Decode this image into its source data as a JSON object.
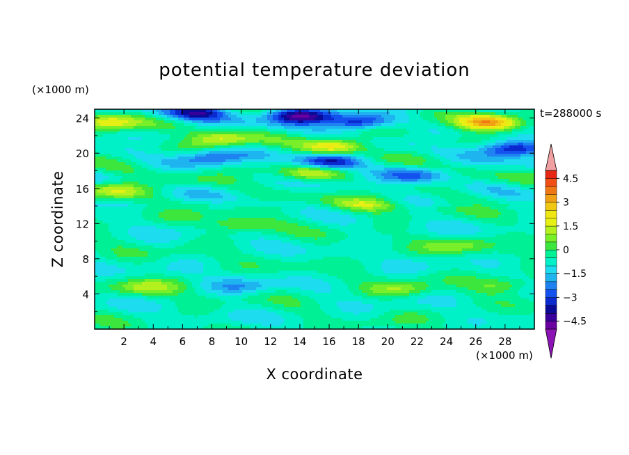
{
  "chart_data": {
    "type": "heatmap",
    "title": "potential temperature deviation",
    "xlabel": "X coordinate",
    "ylabel": "Z coordinate",
    "x_unit": "(×1000 m)",
    "y_unit": "(×1000 m)",
    "time_label": "t=288000 s",
    "xlim": [
      0,
      30
    ],
    "ylim": [
      0,
      25
    ],
    "x_ticks": [
      2,
      4,
      6,
      8,
      10,
      12,
      14,
      16,
      18,
      20,
      22,
      24,
      26,
      28
    ],
    "y_ticks": [
      4,
      8,
      12,
      16,
      20,
      24
    ],
    "colorbar": {
      "levels": [
        -5.0,
        -4.5,
        -4.0,
        -3.5,
        -3.0,
        -2.5,
        -2.0,
        -1.5,
        -1.0,
        -0.5,
        0.0,
        0.5,
        1.0,
        1.5,
        2.0,
        2.5,
        3.0,
        3.5,
        4.0,
        4.5,
        5.0
      ],
      "colors": [
        "#6a00a0",
        "#38009a",
        "#0a0a98",
        "#0a2ad0",
        "#1452f0",
        "#1e82f0",
        "#1eb4f0",
        "#1edcf0",
        "#00f0c8",
        "#00f096",
        "#3ce63c",
        "#78ef28",
        "#b4f01e",
        "#e6f014",
        "#f0e614",
        "#f0c814",
        "#f0a014",
        "#f07814",
        "#f05014",
        "#e62814"
      ],
      "under_color": "#8c14b4",
      "over_color": "#f0a0a0",
      "tick_labels": [
        {
          "value": 4.5,
          "label": "4.5"
        },
        {
          "value": 3.0,
          "label": "3"
        },
        {
          "value": 1.5,
          "label": "1.5"
        },
        {
          "value": 0.0,
          "label": "0"
        },
        {
          "value": -1.5,
          "label": "−1.5"
        },
        {
          "value": -3.0,
          "label": "−3"
        },
        {
          "value": -4.5,
          "label": "−4.5"
        }
      ]
    },
    "features": [
      {
        "x": 27.0,
        "z": 23.5,
        "value": 4.0
      },
      {
        "x": 16.5,
        "z": 20.8,
        "value": 3.0
      },
      {
        "x": 14.8,
        "z": 17.8,
        "value": 2.0
      },
      {
        "x": 1.0,
        "z": 23.5,
        "value": 2.5
      },
      {
        "x": 1.5,
        "z": 15.8,
        "value": 2.0
      },
      {
        "x": 8.5,
        "z": 21.5,
        "value": 2.0
      },
      {
        "x": 3.5,
        "z": 4.8,
        "value": 1.5
      },
      {
        "x": 21.0,
        "z": 4.5,
        "value": 1.2
      },
      {
        "x": 28.0,
        "z": 5.0,
        "value": 1.2
      },
      {
        "x": 10.0,
        "z": 12.0,
        "value": 1.5
      },
      {
        "x": 18.5,
        "z": 14.0,
        "value": 1.5
      },
      {
        "x": 25.0,
        "z": 9.5,
        "value": 1.2
      },
      {
        "x": 14.0,
        "z": 24.2,
        "value": -4.0
      },
      {
        "x": 7.0,
        "z": 24.6,
        "value": -3.0
      },
      {
        "x": 16.0,
        "z": 19.0,
        "value": -3.5
      },
      {
        "x": 28.5,
        "z": 20.5,
        "value": -3.5
      },
      {
        "x": 18.0,
        "z": 23.5,
        "value": -3.0
      },
      {
        "x": 22.0,
        "z": 17.5,
        "value": -1.8
      },
      {
        "x": 8.0,
        "z": 19.5,
        "value": -2.0
      },
      {
        "x": 10.0,
        "z": 4.8,
        "value": -1.2
      }
    ],
    "background_value": -0.6
  }
}
